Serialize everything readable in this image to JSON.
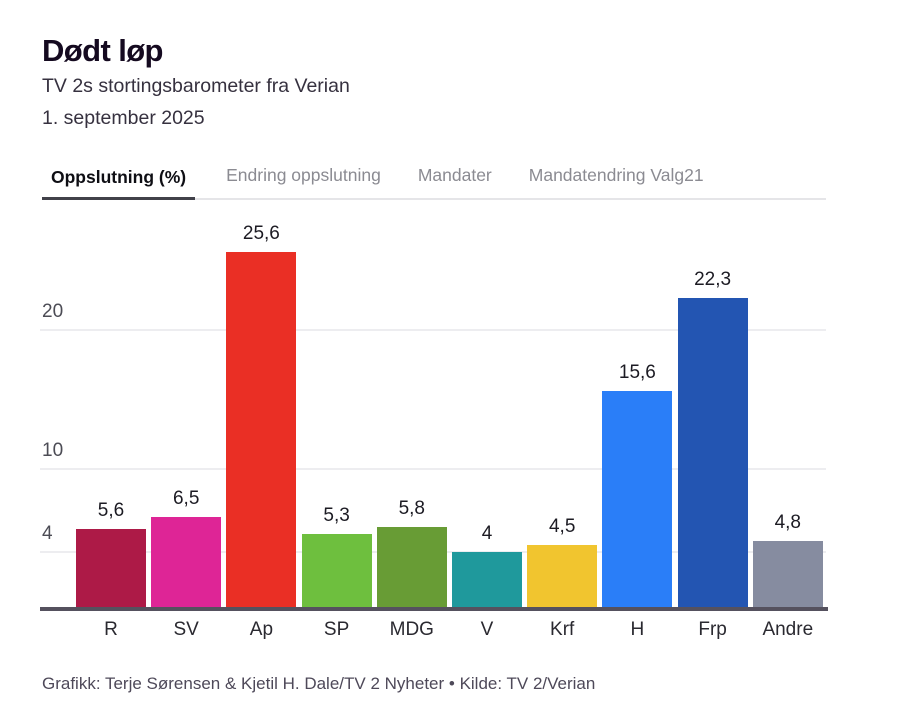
{
  "header": {
    "title": "Dødt løp",
    "subtitle_line1": "TV 2s stortingsbarometer fra Verian",
    "subtitle_line2": "1. september 2025"
  },
  "tabs": [
    {
      "label": "Oppslutning (%)",
      "active": true
    },
    {
      "label": "Endring oppslutning",
      "active": false
    },
    {
      "label": "Mandater",
      "active": false
    },
    {
      "label": "Mandatendring Valg21",
      "active": false
    }
  ],
  "chart_data": {
    "type": "bar",
    "title": "Oppslutning (%)",
    "categories": [
      "R",
      "SV",
      "Ap",
      "SP",
      "MDG",
      "V",
      "Krf",
      "H",
      "Frp",
      "Andre"
    ],
    "values": [
      5.6,
      6.5,
      25.6,
      5.3,
      5.8,
      4,
      4.5,
      15.6,
      22.3,
      4.8
    ],
    "value_labels": [
      "5,6",
      "6,5",
      "25,6",
      "5,3",
      "5,8",
      "4",
      "4,5",
      "15,6",
      "22,3",
      "4,8"
    ],
    "bar_colors": [
      "#ad1a47",
      "#de2596",
      "#ea2f25",
      "#6ebf3e",
      "#689c35",
      "#1f999c",
      "#f1c52f",
      "#2a7ef8",
      "#2355b2",
      "#868ca0"
    ],
    "y_ticks": [
      20,
      10,
      4
    ],
    "y_tick_labels": [
      "20",
      "10",
      "4"
    ],
    "ylim": [
      0,
      28.7
    ],
    "grid": "horizontal",
    "legend": "none",
    "xlabel": "",
    "ylabel": "",
    "decimal_separator": ","
  },
  "footer": {
    "credit": "Grafikk: Terje Sørensen & Kjetil H. Dale/TV 2 Nyheter • Kilde: TV 2/Verian"
  }
}
